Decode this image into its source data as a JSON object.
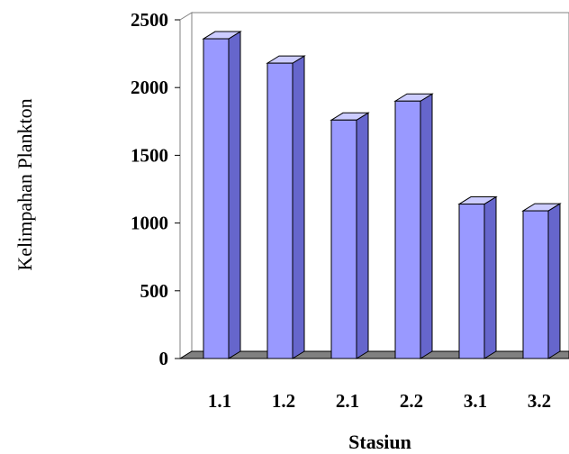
{
  "chart_data": {
    "type": "bar",
    "title": "",
    "xlabel": "Stasiun",
    "ylabel": "Kelimpahan Plankton",
    "categories": [
      "1.1",
      "1.2",
      "2.1",
      "2.2",
      "3.1",
      "3.2"
    ],
    "values": [
      2360,
      2180,
      1760,
      1900,
      1140,
      1090
    ],
    "ylim": [
      0,
      2500
    ],
    "yticks": [
      "0",
      "500",
      "1000",
      "1500",
      "2000",
      "2500"
    ],
    "grid": false,
    "legend": "none",
    "style": "3d-column",
    "colors": {
      "bar_front": "#9999ff",
      "bar_top": "#ccccff",
      "bar_side": "#6666cc",
      "floor": "#808080",
      "axis": "#808080"
    }
  }
}
